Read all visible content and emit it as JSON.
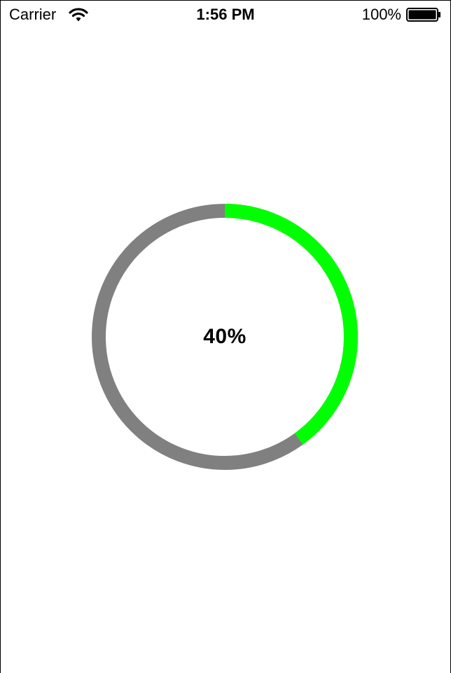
{
  "status_bar": {
    "carrier": "Carrier",
    "time": "1:56 PM",
    "battery_percent": "100%",
    "battery_level": 1.0,
    "wifi_icon": "wifi-icon",
    "battery_icon": "battery-icon"
  },
  "progress": {
    "label": "40%",
    "value": 0.4,
    "track_color": "#808080",
    "fill_color": "#00ff00"
  }
}
